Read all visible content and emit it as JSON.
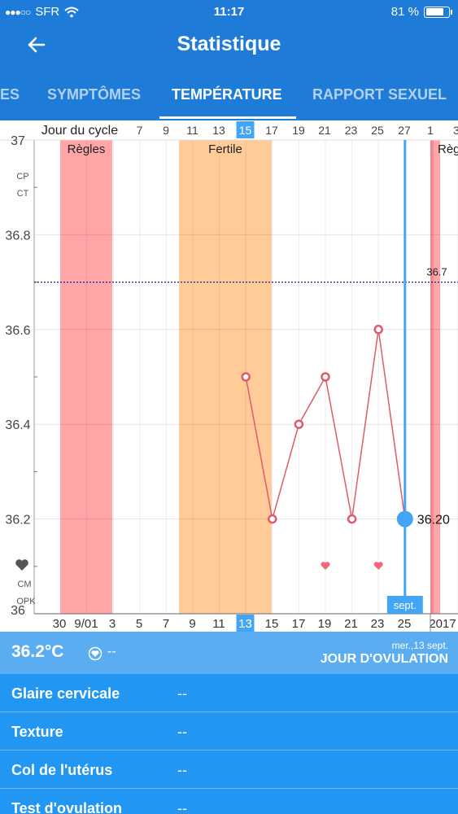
{
  "statusbar": {
    "signal": "●●●○○",
    "carrier": "SFR",
    "time": "11:17",
    "battery": "81 %"
  },
  "appbar": {
    "title": "Statistique"
  },
  "tabs": [
    {
      "label": "ES",
      "active": false
    },
    {
      "label": "SYMPTÔMES",
      "active": false
    },
    {
      "label": "TEMPÉRATURE",
      "active": true
    },
    {
      "label": "RAPPORT SEXUEL",
      "active": false
    }
  ],
  "chart_data": {
    "type": "line",
    "top_axis_label": "Jour du cycle",
    "top_ticks": [
      "7",
      "9",
      "11",
      "13",
      "15",
      "17",
      "19",
      "21",
      "23",
      "25",
      "27",
      "1",
      "3"
    ],
    "selected_cycle_day": "15",
    "bottom_ticks": [
      "30",
      "9/01",
      "3",
      "5",
      "7",
      "9",
      "11",
      "13",
      "15",
      "17",
      "19",
      "21",
      "23",
      "25",
      "2017"
    ],
    "selected_date": "13",
    "month_label": "sept.",
    "ylim": [
      36,
      37
    ],
    "y_ticks": [
      "36",
      "36.2",
      "36.4",
      "36.6",
      "36.8",
      "37"
    ],
    "y_row_labels": [
      "CP",
      "CT",
      "CM",
      "OPK"
    ],
    "coverline": 36.7,
    "coverline_label": "36.7",
    "regions": [
      {
        "label": "Règles",
        "type": "period"
      },
      {
        "label": "Fertile",
        "type": "fertile"
      },
      {
        "label": "Règ",
        "type": "period"
      }
    ],
    "series": [
      {
        "points": [
          {
            "day": 8,
            "value": 36.5
          },
          {
            "day": 9,
            "value": 36.2
          },
          {
            "day": 10,
            "value": 36.4
          },
          {
            "day": 11,
            "value": 36.5
          },
          {
            "day": 12,
            "value": 36.2
          },
          {
            "day": 13,
            "value": 36.6
          },
          {
            "day": 14,
            "value": 36.2
          }
        ]
      }
    ],
    "selected_value_label": "36.20",
    "hearts": [
      11,
      13
    ],
    "colors": {
      "line": "#e05a6a",
      "period": "#ffa6a9",
      "fertile": "#ffcc99",
      "accent": "#42a5f5",
      "coverline": "#1a237e"
    }
  },
  "summary": {
    "temperature": "36.2°C",
    "heart_value": "--",
    "date": "mer.,13 sept.",
    "status": "JOUR D'OVULATION"
  },
  "details": [
    {
      "label": "Glaire cervicale",
      "value": "--"
    },
    {
      "label": "Texture",
      "value": "--"
    },
    {
      "label": "Col de l'utérus",
      "value": "--"
    },
    {
      "label": "Test d'ovulation",
      "value": "--"
    }
  ]
}
